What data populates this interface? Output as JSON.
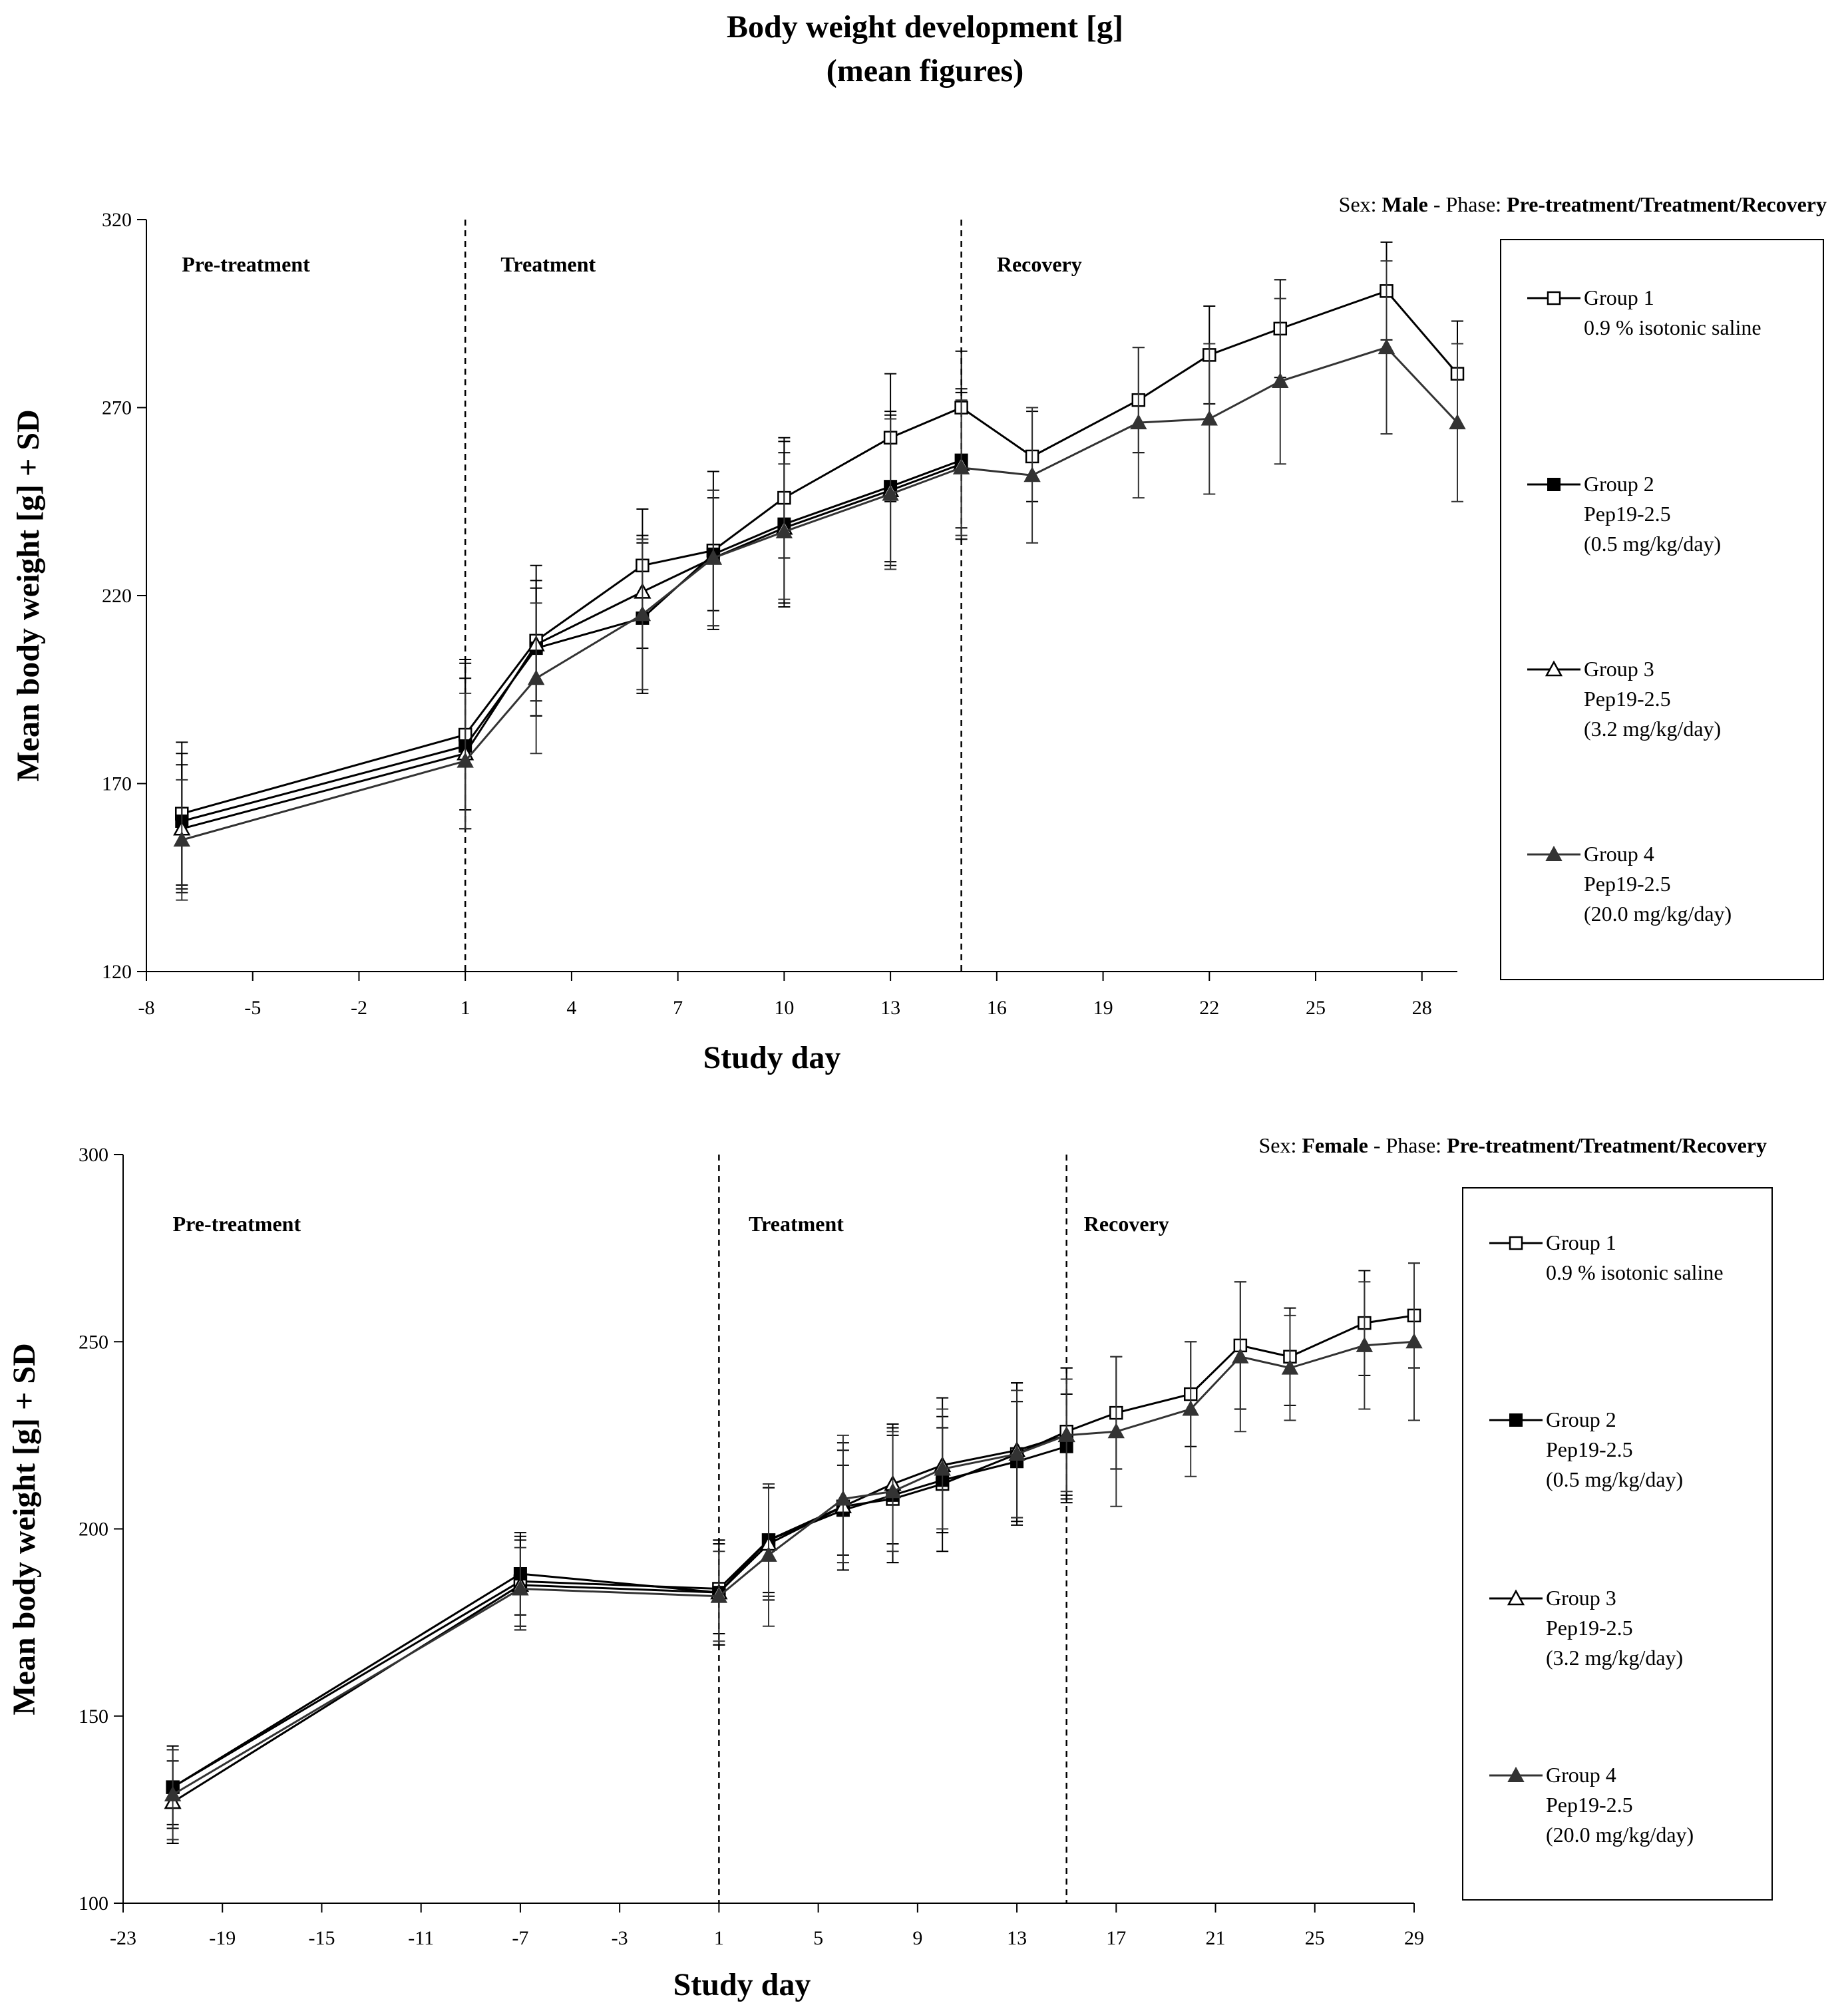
{
  "page": {
    "title_line1": "Body weight development [g]",
    "title_line2": "(mean figures)"
  },
  "chart_data": [
    {
      "type": "line",
      "sex_prefix": "Sex: ",
      "sex_value": "Male",
      "phase_prefix": " - Phase: ",
      "phase_value": "Pre-treatment/Treatment/Recovery",
      "xlabel": "Study day",
      "ylabel": "Mean body weight [g] + SD",
      "xlim": [
        -8,
        29
      ],
      "ylim": [
        120,
        320
      ],
      "xticks": [
        -8,
        -5,
        -2,
        1,
        4,
        7,
        10,
        13,
        16,
        19,
        22,
        25,
        28
      ],
      "yticks": [
        120,
        170,
        220,
        270,
        320
      ],
      "phase_lines": [
        1,
        15
      ],
      "phase_labels": [
        {
          "text": "Pre-treatment",
          "x": -7
        },
        {
          "text": "Treatment",
          "x": 2
        },
        {
          "text": "Recovery",
          "x": 16
        }
      ],
      "series": [
        {
          "name": "Group 1",
          "desc": [
            "0.9 % isotonic saline"
          ],
          "marker": "open-square",
          "color": "#000000",
          "x": [
            -7,
            1,
            3,
            6,
            8,
            10,
            13,
            15,
            17,
            20,
            22,
            24,
            27,
            29
          ],
          "y": [
            162,
            183,
            208,
            228,
            232,
            246,
            262,
            270,
            257,
            272,
            284,
            291,
            301,
            279
          ],
          "sd": [
            19,
            20,
            20,
            15,
            21,
            16,
            17,
            15,
            12,
            14,
            13,
            13,
            13,
            14
          ]
        },
        {
          "name": "Group 2",
          "desc": [
            "Pep19-2.5",
            "(0.5 mg/kg/day)"
          ],
          "marker": "filled-square",
          "color": "#000000",
          "x": [
            -7,
            1,
            3,
            6,
            8,
            10,
            13,
            15
          ],
          "y": [
            160,
            180,
            206,
            214,
            231,
            239,
            249,
            256
          ],
          "sd": [
            18,
            22,
            18,
            20,
            15,
            22,
            20,
            18
          ]
        },
        {
          "name": "Group 3",
          "desc": [
            "Pep19-2.5",
            "(3.2 mg/kg/day)"
          ],
          "marker": "open-triangle",
          "color": "#000000",
          "x": [
            -7,
            1,
            3,
            6,
            8,
            10,
            13,
            15
          ],
          "y": [
            158,
            178,
            207,
            221,
            230,
            238,
            248,
            255
          ],
          "sd": [
            17,
            20,
            15,
            15,
            18,
            20,
            20,
            20
          ]
        },
        {
          "name": "Group 4",
          "desc": [
            "Pep19-2.5",
            "(20.0 mg/kg/day)"
          ],
          "marker": "filled-triangle",
          "color": "#333333",
          "x": [
            -7,
            1,
            3,
            6,
            8,
            10,
            13,
            15,
            17,
            20,
            22,
            24,
            27,
            29
          ],
          "y": [
            155,
            176,
            198,
            215,
            230,
            237,
            247,
            254,
            252,
            266,
            267,
            277,
            286,
            266
          ],
          "sd": [
            16,
            18,
            20,
            20,
            18,
            18,
            20,
            18,
            18,
            20,
            20,
            22,
            23,
            21
          ]
        }
      ]
    },
    {
      "type": "line",
      "sex_prefix": "Sex: ",
      "sex_value": "Female",
      "phase_prefix": " - Phase: ",
      "phase_value": "Pre-treatment/Treatment/Recovery",
      "xlabel": "Study day",
      "ylabel": "Mean body weight [g] + SD",
      "xlim": [
        -23,
        29
      ],
      "ylim": [
        100,
        300
      ],
      "xticks": [
        -23,
        -19,
        -15,
        -11,
        -7,
        -3,
        1,
        5,
        9,
        13,
        17,
        21,
        25,
        29
      ],
      "yticks": [
        100,
        150,
        200,
        250,
        300
      ],
      "phase_lines": [
        1,
        15
      ],
      "phase_labels": [
        {
          "text": "Pre-treatment",
          "x": -21
        },
        {
          "text": "Treatment",
          "x": 2.2
        },
        {
          "text": "Recovery",
          "x": 15.7
        }
      ],
      "series": [
        {
          "name": "Group 1",
          "desc": [
            "0.9 % isotonic saline"
          ],
          "marker": "open-square",
          "color": "#000000",
          "x": [
            -21,
            -7,
            1,
            3,
            6,
            8,
            10,
            13,
            15,
            17,
            20,
            22,
            24,
            27,
            29
          ],
          "y": [
            131,
            186,
            184,
            197,
            206,
            208,
            212,
            220,
            226,
            231,
            236,
            249,
            246,
            255,
            257
          ],
          "sd": [
            10,
            12,
            12,
            15,
            17,
            17,
            18,
            19,
            17,
            15,
            14,
            17,
            13,
            14,
            14
          ]
        },
        {
          "name": "Group 2",
          "desc": [
            "Pep19-2.5",
            "(0.5 mg/kg/day)"
          ],
          "marker": "filled-square",
          "color": "#000000",
          "x": [
            -21,
            -7,
            1,
            3,
            6,
            8,
            10,
            13,
            15
          ],
          "y": [
            131,
            188,
            183,
            197,
            205,
            209,
            213,
            218,
            222
          ],
          "sd": [
            11,
            11,
            14,
            14,
            12,
            18,
            14,
            16,
            14
          ]
        },
        {
          "name": "Group 3",
          "desc": [
            "Pep19-2.5",
            "(3.2 mg/kg/day)"
          ],
          "marker": "open-triangle",
          "color": "#000000",
          "x": [
            -21,
            -7,
            1,
            3,
            6,
            8,
            10,
            13,
            15
          ],
          "y": [
            127,
            185,
            183,
            196,
            206,
            212,
            217,
            221,
            225
          ],
          "sd": [
            11,
            12,
            14,
            15,
            15,
            16,
            18,
            18,
            18
          ]
        },
        {
          "name": "Group 4",
          "desc": [
            "Pep19-2.5",
            "(20.0 mg/kg/day)"
          ],
          "marker": "filled-triangle",
          "color": "#333333",
          "x": [
            -21,
            -7,
            1,
            3,
            6,
            8,
            10,
            13,
            15,
            17,
            20,
            22,
            24,
            27,
            29
          ],
          "y": [
            129,
            184,
            182,
            193,
            208,
            210,
            216,
            220,
            225,
            226,
            232,
            246,
            243,
            249,
            250
          ],
          "sd": [
            12,
            11,
            12,
            19,
            17,
            16,
            16,
            17,
            15,
            20,
            18,
            20,
            14,
            17,
            21
          ]
        }
      ]
    }
  ]
}
